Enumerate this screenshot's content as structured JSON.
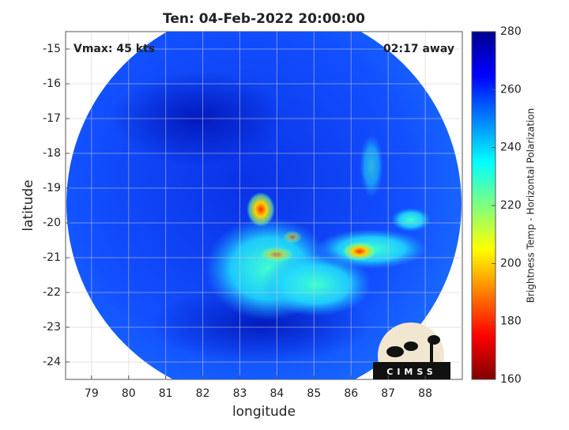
{
  "chart_data": {
    "type": "heatmap",
    "title": "Ten: 04-Feb-2022 20:00:00",
    "xlabel": "longitude",
    "ylabel": "latitude",
    "xlim": [
      78.3,
      89
    ],
    "xticks": [
      79,
      80,
      81,
      82,
      83,
      84,
      85,
      86,
      87,
      88
    ],
    "ylim": [
      -24.5,
      -14.5
    ],
    "yticks": [
      -24,
      -23,
      -22,
      -21,
      -20,
      -19,
      -18,
      -17,
      -16,
      -15
    ],
    "grid": true,
    "annotations": [
      "Vmax: 45 kts",
      "02:17 away"
    ],
    "logo": "CIMSS",
    "colorbar": {
      "label": "Brightness Temp - Horizontal Polarization",
      "colormap": "jet",
      "clim": [
        160,
        280
      ],
      "ticks": [
        160,
        180,
        200,
        220,
        240,
        260,
        280
      ]
    }
  }
}
